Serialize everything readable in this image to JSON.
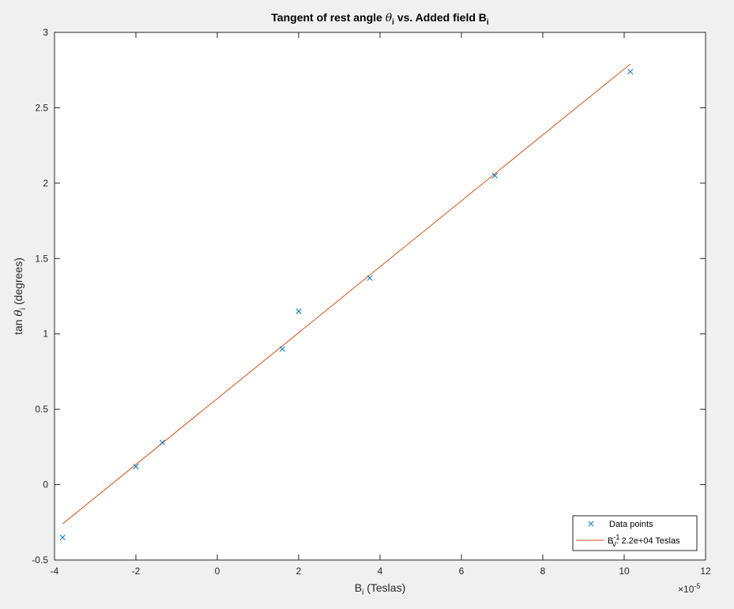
{
  "chart_data": {
    "type": "scatter",
    "title": {
      "prefix": "Tangent of rest angle ",
      "theta": "θ",
      "theta_sub": "i",
      "middle": " vs. Added field B",
      "b_sub": "i"
    },
    "xlabel": {
      "main": "B",
      "sub": "i",
      "rest": " (Teslas)"
    },
    "ylabel": {
      "prefix": "tan ",
      "theta": "θ",
      "sub": "i",
      "rest": " (degrees)"
    },
    "x_multiplier": {
      "prefix": "×",
      "base": "10",
      "exponent": "-5"
    },
    "x_scale": 1e-05,
    "xlim": [
      -4,
      12
    ],
    "ylim": [
      -0.5,
      3
    ],
    "x_ticks": [
      -4,
      -2,
      0,
      2,
      4,
      6,
      8,
      10,
      12
    ],
    "x_tick_labels": [
      "-4",
      "-2",
      "0",
      "2",
      "4",
      "6",
      "8",
      "10",
      "12"
    ],
    "y_ticks": [
      -0.5,
      0,
      0.5,
      1,
      1.5,
      2,
      2.5,
      3
    ],
    "y_tick_labels": [
      "-0.5",
      "0",
      "0.5",
      "1",
      "1.5",
      "2",
      "2.5",
      "3"
    ],
    "grid": false,
    "legend_position": "bottom-right",
    "series": [
      {
        "name": "Data points",
        "kind": "scatter",
        "marker": "x",
        "color": "#0072bd",
        "x": [
          -3.8,
          -2.0,
          -1.35,
          1.6,
          2.0,
          3.75,
          6.82,
          10.15
        ],
        "y": [
          -0.35,
          0.12,
          0.28,
          0.9,
          1.15,
          1.37,
          2.05,
          2.74
        ]
      },
      {
        "name": "B_V^-1: 2.2e+04 Teslas",
        "kind": "line",
        "color": "#d95319",
        "x": [
          -3.8,
          10.15
        ],
        "y": [
          -0.26,
          2.79
        ]
      }
    ],
    "legend": [
      {
        "marker": "x",
        "label": "Data points",
        "color": "#0072bd"
      },
      {
        "marker": "line",
        "main": "B",
        "sub": "V",
        "sup": "-1",
        "rest": ": 2.2e+04 Teslas",
        "color": "#d95319"
      }
    ]
  }
}
